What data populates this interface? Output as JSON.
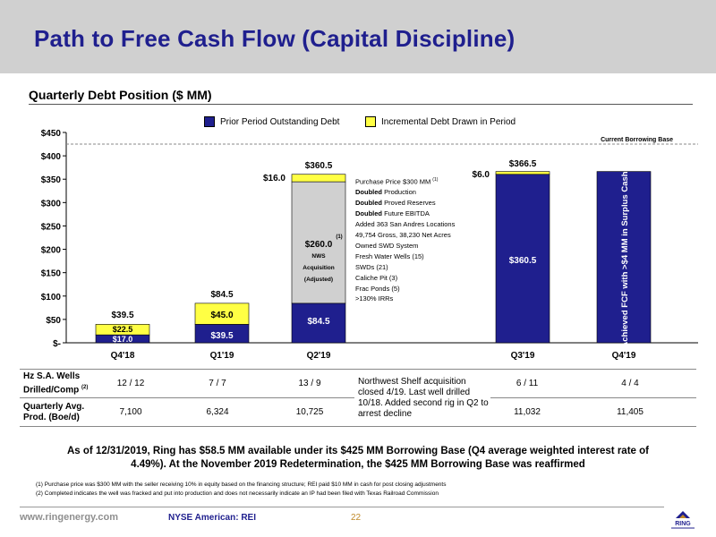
{
  "slide": {
    "title": "Path to Free Cash Flow (Capital Discipline)",
    "subtitle": "Quarterly Debt Position ($ MM)",
    "summary": "As of 12/31/2019, Ring has $58.5 MM available under its $425 MM Borrowing Base (Q4 average weighted interest rate of 4.49%). At the November 2019 Redetermination, the $425 MM Borrowing Base was reaffirmed",
    "footnote_1": "(1) Purchase price was $300 MM with the seller receiving 10% in equity based on the financing structure; REI paid $10 MM in cash for post closing adjustments",
    "footnote_2": "(2) Completed indicates the well was fracked and put into production and does not necessarily indicate an IP had been filed with Texas Railroad Commission",
    "footer_url": "www.ringenergy.com",
    "footer_ticker": "NYSE American: REI",
    "page_number": "22",
    "logo_text": "RING"
  },
  "colors": {
    "title": "#1f1f8e",
    "prior_debt": "#1f1f8e",
    "incremental_debt": "#ffff44",
    "nws_acquisition": "#d0d0d0",
    "borrowing_base_line": "#888888"
  },
  "chart_data": {
    "type": "bar",
    "stacked": true,
    "categories": [
      "Q4'18",
      "Q1'19",
      "Q2'19",
      "Q3'19",
      "Q4'19"
    ],
    "ylim": [
      0,
      450
    ],
    "yticks": [
      0,
      50,
      100,
      150,
      200,
      250,
      300,
      350,
      400,
      450
    ],
    "ytick_labels": [
      "$-",
      "$50",
      "$100",
      "$150",
      "$200",
      "$250",
      "$300",
      "$350",
      "$400",
      "$450"
    ],
    "legend": [
      {
        "name": "Prior Period Outstanding Debt",
        "color": "#1f1f8e"
      },
      {
        "name": "Incremental Debt Drawn in Period",
        "color": "#ffff44"
      }
    ],
    "reference_line": {
      "value": 425,
      "label": "Current Borrowing Base"
    },
    "bars": [
      {
        "category": "Q4'18",
        "segments": [
          {
            "kind": "prior",
            "value": 17.0,
            "label": "$17.0"
          },
          {
            "kind": "incremental",
            "value": 22.5,
            "label": "$22.5"
          }
        ],
        "total_label": "$39.5"
      },
      {
        "category": "Q1'19",
        "segments": [
          {
            "kind": "prior",
            "value": 39.5,
            "label": "$39.5"
          },
          {
            "kind": "incremental",
            "value": 45.0,
            "label": "$45.0"
          }
        ],
        "total_label": "$84.5"
      },
      {
        "category": "Q2'19",
        "segments": [
          {
            "kind": "prior",
            "value": 84.5,
            "label": "$84.5"
          },
          {
            "kind": "acquisition",
            "value": 260.0,
            "label": "$260.0",
            "label_sup": "(1)",
            "sublabel_1": "NWS",
            "sublabel_2": "Acquisition",
            "sublabel_3": "(Adjusted)"
          },
          {
            "kind": "incremental",
            "value": 16.0,
            "label": "$16.0"
          }
        ],
        "total_label": "$360.5"
      },
      {
        "category": "Q3'19",
        "segments": [
          {
            "kind": "prior",
            "value": 360.5,
            "label": "$360.5"
          },
          {
            "kind": "incremental",
            "value": 6.0,
            "label": "$6.0"
          }
        ],
        "total_label": "$366.5"
      },
      {
        "category": "Q4'19",
        "segments": [
          {
            "kind": "prior",
            "value": 366.5,
            "label": "Achieved FCF with >$4 MM in Surplus Cash"
          }
        ],
        "total_label": ""
      }
    ]
  },
  "acquisition_notes": {
    "line_1": "Purchase Price $300 MM",
    "line_1_sup": "(1)",
    "line_2_bold": "Doubled",
    "line_2": " Production",
    "line_3_bold": "Doubled",
    "line_3": " Proved Reserves",
    "line_4_bold": "Doubled",
    "line_4": " Future EBITDA",
    "line_5": "Added 363 San Andres Locations",
    "line_6": "49,754 Gross, 38,230 Net Acres",
    "line_7": "Owned SWD System",
    "line_8": "Fresh Water Wells (15)",
    "line_9": "SWDs (21)",
    "line_10": "Caliche Pit (3)",
    "line_11": "Frac Ponds (5)",
    "line_12": ">130% IRRs"
  },
  "stats_table": {
    "row1_header_a": "Hz S.A. Wells",
    "row1_header_b": "Drilled/Comp",
    "row1_header_sup": "(2)",
    "row1": [
      "12 / 12",
      "7 / 7",
      "13 / 9",
      "6 / 11",
      "4 / 4"
    ],
    "row2_header_a": "Quarterly Avg.",
    "row2_header_b": "Prod. (Boe/d)",
    "row2": [
      "7,100",
      "6,324",
      "10,725",
      "11,032",
      "11,405"
    ],
    "note": "Northwest Shelf acquisition closed 4/19. Last well drilled 10/18. Added second rig in Q2 to arrest decline"
  }
}
